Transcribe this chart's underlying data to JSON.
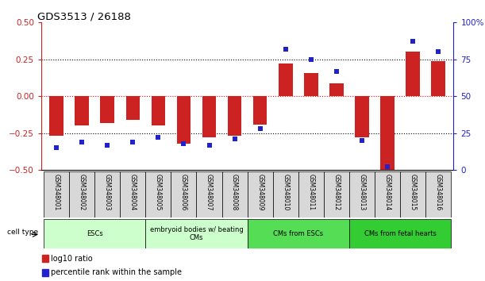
{
  "title": "GDS3513 / 26188",
  "samples": [
    "GSM348001",
    "GSM348002",
    "GSM348003",
    "GSM348004",
    "GSM348005",
    "GSM348006",
    "GSM348007",
    "GSM348008",
    "GSM348009",
    "GSM348010",
    "GSM348011",
    "GSM348012",
    "GSM348013",
    "GSM348014",
    "GSM348015",
    "GSM348016"
  ],
  "log10_ratio": [
    -0.27,
    -0.2,
    -0.18,
    -0.16,
    -0.2,
    -0.32,
    -0.28,
    -0.27,
    -0.19,
    0.22,
    0.16,
    0.09,
    -0.28,
    -0.52,
    0.3,
    0.24
  ],
  "percentile_rank": [
    15,
    19,
    17,
    19,
    22,
    18,
    17,
    21,
    28,
    82,
    75,
    67,
    20,
    2,
    87,
    80
  ],
  "group_boundaries": [
    [
      0,
      3,
      "#ccffcc",
      "ESCs"
    ],
    [
      4,
      7,
      "#ccffcc",
      "embryoid bodies w/ beating\nCMs"
    ],
    [
      8,
      11,
      "#55dd55",
      "CMs from ESCs"
    ],
    [
      12,
      15,
      "#33cc33",
      "CMs from fetal hearts"
    ]
  ],
  "bar_color": "#cc2222",
  "dot_color": "#2222cc",
  "ylim_left": [
    -0.5,
    0.5
  ],
  "ylim_right": [
    0,
    100
  ],
  "yticks_left": [
    -0.5,
    -0.25,
    0,
    0.25,
    0.5
  ],
  "yticks_right": [
    0,
    25,
    50,
    75,
    100
  ],
  "hline_dotted": [
    -0.25,
    0.25
  ],
  "hline_red": 0.0,
  "legend": [
    [
      "log10 ratio",
      "#cc2222"
    ],
    [
      "percentile rank within the sample",
      "#2222cc"
    ]
  ]
}
